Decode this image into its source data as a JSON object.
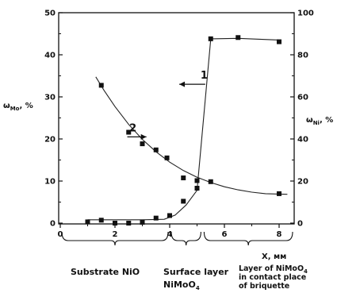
{
  "chart_data": {
    "type": "scatter",
    "x_axis": {
      "label": "X, мм",
      "min": 0,
      "max": 9,
      "ticks": [
        0,
        2,
        4,
        6,
        8
      ]
    },
    "y_left": {
      "label": "ωMo, %",
      "label_base": "ω",
      "label_sub": "Mo",
      "label_suffix": ", %",
      "min": 0,
      "max": 50,
      "ticks": [
        0,
        10,
        20,
        30,
        40,
        50
      ]
    },
    "y_right": {
      "label": "ωNi, %",
      "label_base": "ω",
      "label_sub": "Ni",
      "label_suffix": ", %",
      "min": 0,
      "max": 100,
      "ticks": [
        0,
        20,
        40,
        60,
        80,
        100
      ]
    },
    "series": [
      {
        "axis": "left",
        "annotation": "1",
        "points": [
          [
            1.0,
            0.3
          ],
          [
            1.5,
            0.7
          ],
          [
            2.0,
            0.0
          ],
          [
            2.5,
            0.0
          ],
          [
            3.0,
            0.2
          ],
          [
            3.5,
            1.2
          ],
          [
            4.0,
            1.8
          ],
          [
            4.5,
            5.2
          ],
          [
            5.0,
            8.3
          ],
          [
            5.5,
            43.8
          ],
          [
            6.5,
            44.1
          ],
          [
            8.0,
            43.1
          ]
        ],
        "fit": [
          [
            1.0,
            0.8
          ],
          [
            2.0,
            0.8
          ],
          [
            3.0,
            0.8
          ],
          [
            3.8,
            0.9
          ],
          [
            4.2,
            1.9
          ],
          [
            4.6,
            4.3
          ],
          [
            5.0,
            7.8
          ],
          [
            5.5,
            43.8
          ],
          [
            6.5,
            43.9
          ],
          [
            8.0,
            43.5
          ]
        ]
      },
      {
        "axis": "right",
        "annotation": "2",
        "points": [
          [
            1.5,
            65.5
          ],
          [
            2.5,
            43.2
          ],
          [
            3.0,
            37.7
          ],
          [
            3.5,
            34.8
          ],
          [
            3.9,
            31.0
          ],
          [
            4.5,
            21.5
          ],
          [
            5.0,
            20.2
          ],
          [
            5.5,
            19.7
          ],
          [
            8.0,
            14.0
          ]
        ],
        "fit": [
          [
            1.3,
            69.5
          ],
          [
            1.6,
            63.1
          ],
          [
            2.0,
            55.4
          ],
          [
            2.5,
            46.9
          ],
          [
            3.0,
            39.8
          ],
          [
            3.5,
            33.9
          ],
          [
            4.0,
            29.0
          ],
          [
            4.5,
            25.0
          ],
          [
            5.0,
            21.8
          ],
          [
            5.5,
            19.3
          ],
          [
            6.0,
            17.3
          ],
          [
            6.5,
            15.8
          ],
          [
            7.0,
            14.7
          ],
          [
            7.5,
            14.0
          ],
          [
            8.0,
            13.8
          ],
          [
            8.3,
            13.7
          ]
        ]
      }
    ],
    "annotations": [
      {
        "text": "1",
        "x": 5.3,
        "y": 33.0,
        "axis": "left",
        "arrow_from": 5.3,
        "arrow_to": 4.35
      },
      {
        "text": "2",
        "x": 2.7,
        "y": 20.5,
        "axis": "left",
        "arrow_from": 2.45,
        "arrow_to": 3.15
      }
    ],
    "regions": [
      {
        "lines": [
          "Substrate NiO"
        ],
        "from": 0,
        "to": 4.0
      },
      {
        "lines": [
          "Surface layer",
          "NiMoO4"
        ],
        "from": 4.0,
        "to": 5.2
      },
      {
        "lines": [
          "Layer of NiMoO4",
          "in contact place",
          "of briquette"
        ],
        "from": 5.2,
        "to": 9.0
      }
    ]
  }
}
